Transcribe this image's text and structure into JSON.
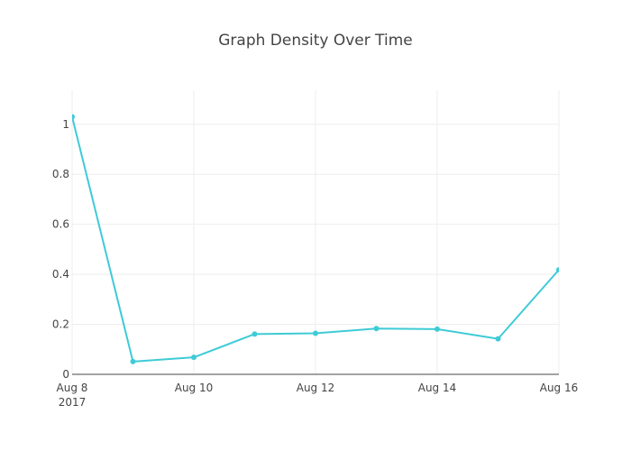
{
  "chart_data": {
    "type": "line",
    "title": "Graph Density Over Time",
    "xlabel": "",
    "ylabel": "",
    "x_ticks": [
      {
        "date": "2017-08-08",
        "label": "Aug 8",
        "sublabel": "2017"
      },
      {
        "date": "2017-08-10",
        "label": "Aug 10",
        "sublabel": ""
      },
      {
        "date": "2017-08-12",
        "label": "Aug 12",
        "sublabel": ""
      },
      {
        "date": "2017-08-14",
        "label": "Aug 14",
        "sublabel": ""
      },
      {
        "date": "2017-08-16",
        "label": "Aug 16",
        "sublabel": ""
      }
    ],
    "y_ticks": [
      0,
      0.2,
      0.4,
      0.6,
      0.8,
      1
    ],
    "y_tick_labels": [
      "0",
      "0.2",
      "0.4",
      "0.6",
      "0.8",
      "1"
    ],
    "xlim": [
      "2017-08-08",
      "2017-08-16"
    ],
    "ylim": [
      0,
      1.0
    ],
    "grid": true,
    "line_color": "#3ecbd6",
    "series": [
      {
        "x": [
          "2017-08-08",
          "2017-08-09",
          "2017-08-10",
          "2017-08-11",
          "2017-08-12",
          "2017-08-13",
          "2017-08-14",
          "2017-08-15",
          "2017-08-16"
        ],
        "values": [
          1.03,
          0.051,
          0.068,
          0.161,
          0.164,
          0.183,
          0.181,
          0.142,
          0.418
        ]
      }
    ]
  }
}
